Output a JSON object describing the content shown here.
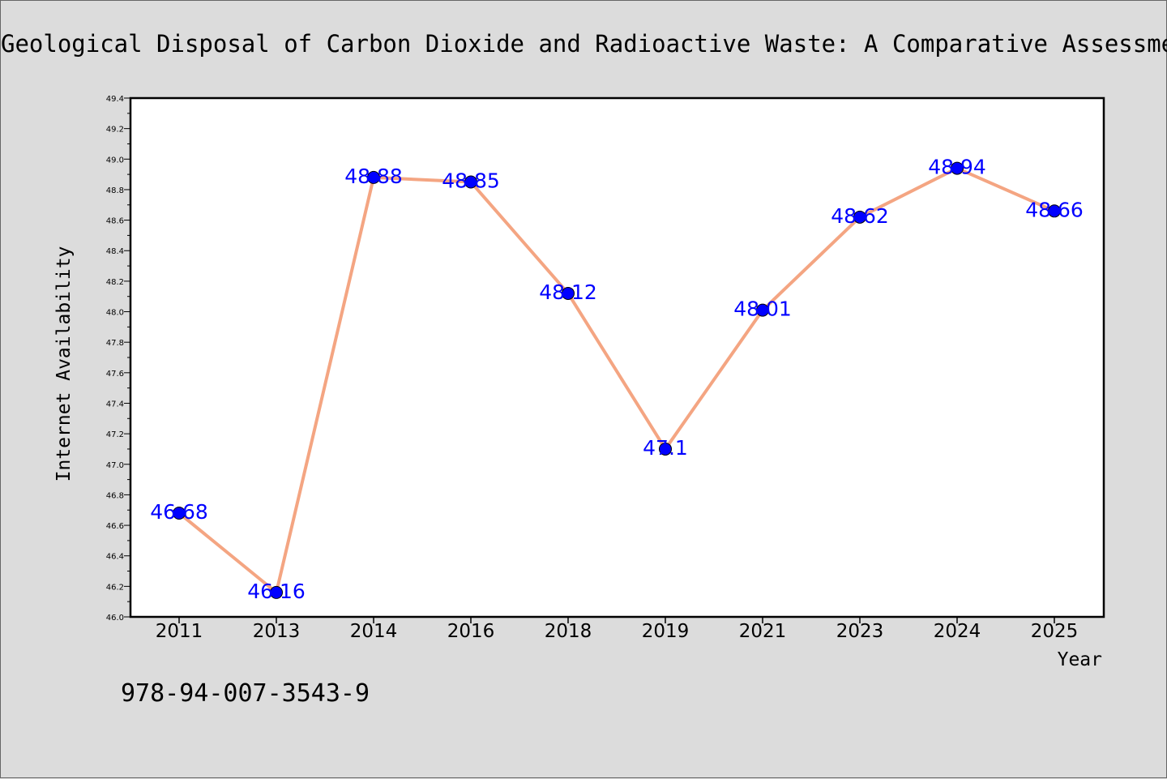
{
  "chart_data": {
    "type": "line",
    "title": "Geological Disposal of Carbon Dioxide and Radioactive Waste: A Comparative Assessment",
    "xlabel": "Year",
    "ylabel": "Internet Availability",
    "categories": [
      "2011",
      "2013",
      "2014",
      "2016",
      "2018",
      "2019",
      "2021",
      "2023",
      "2024",
      "2025"
    ],
    "values": [
      46.68,
      46.16,
      48.88,
      48.85,
      48.12,
      47.1,
      48.01,
      48.62,
      48.94,
      48.66
    ],
    "point_labels": [
      "46.68",
      "46.16",
      "48.88",
      "48.85",
      "48.12",
      "47.1",
      "48.01",
      "48.62",
      "48.94",
      "48.66"
    ],
    "ylim": [
      46.0,
      49.4
    ],
    "yticks": [
      "46.0",
      "46.2",
      "46.4",
      "46.6",
      "46.8",
      "47.0",
      "47.2",
      "47.4",
      "47.6",
      "47.8",
      "48.0",
      "48.2",
      "48.4",
      "48.6",
      "48.8",
      "49.0",
      "49.2",
      "49.4"
    ],
    "line_color": "#f4a582",
    "marker_color": "#0000ff",
    "label_color": "#0000ff",
    "grid": false
  },
  "footer": {
    "isbn": "978-94-007-3543-9"
  }
}
